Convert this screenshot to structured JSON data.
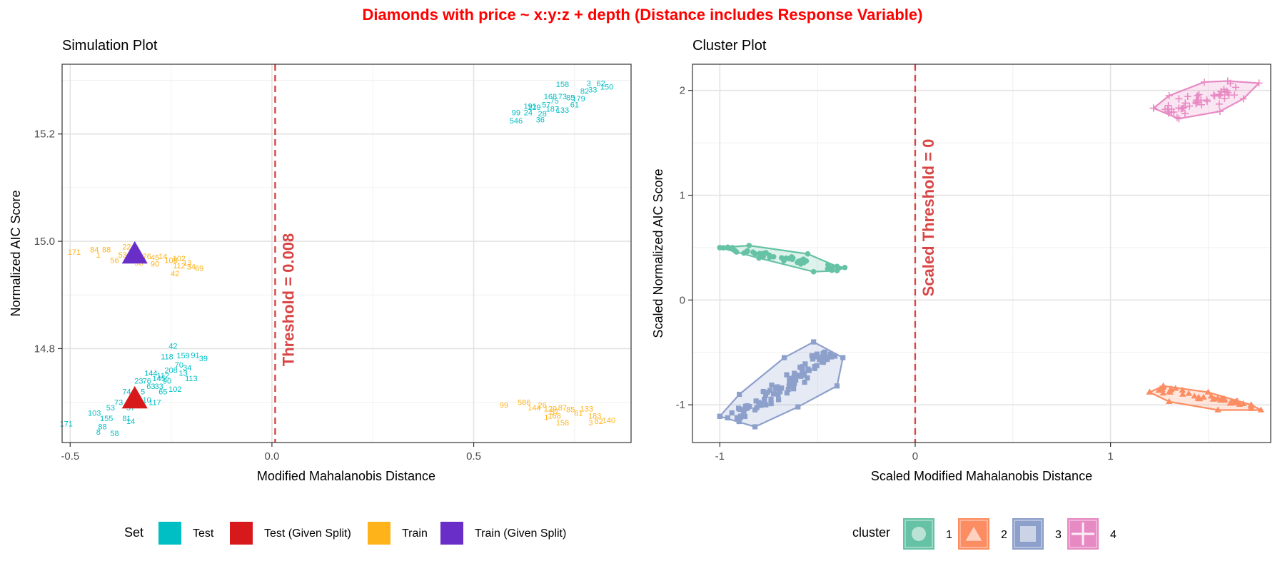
{
  "title": "Diamonds with price ~ x:y:z + depth (Distance includes Response Variable)",
  "colors": {
    "title": "#ff0000",
    "threshold": "#d94545",
    "test": "#00bfc4",
    "test_given": "#d7191c",
    "train": "#ffb31a",
    "train_given": "#6a2ec8",
    "c1": "#66c2a5",
    "c2": "#fc8d62",
    "c3": "#8da0cb",
    "c4": "#e78ac3"
  },
  "chart_data": [
    {
      "type": "scatter",
      "title": "Simulation Plot",
      "xlabel": "Modified Mahalanobis Distance",
      "ylabel": "Normalized AIC Score",
      "xlim": [
        -0.52,
        0.89
      ],
      "ylim": [
        14.625,
        15.33
      ],
      "x_ticks": [
        -0.5,
        0.0,
        0.5
      ],
      "x_tick_labels": [
        "-0.5",
        "0.0",
        "0.5"
      ],
      "y_ticks": [
        14.8,
        15.0,
        15.2
      ],
      "y_tick_labels": [
        "14.8",
        "15.0",
        "15.2"
      ],
      "grid": true,
      "threshold": {
        "x": 0.008,
        "label": "Threshold = 0.008"
      },
      "legend": {
        "position": "bottom",
        "title": "Set",
        "entries": [
          "Test",
          "Test (Given Split)",
          "Train",
          "Train (Given Split)"
        ]
      },
      "series": [
        {
          "name": "Test",
          "color_key": "test",
          "marker": "text",
          "points": [
            {
              "x": -0.51,
              "y": 14.66,
              "label": "171"
            },
            {
              "x": -0.42,
              "y": 14.655,
              "label": "88"
            },
            {
              "x": -0.44,
              "y": 14.68,
              "label": "103"
            },
            {
              "x": -0.4,
              "y": 14.69,
              "label": "53"
            },
            {
              "x": -0.38,
              "y": 14.7,
              "label": "73"
            },
            {
              "x": -0.43,
              "y": 14.645,
              "label": "8"
            },
            {
              "x": -0.39,
              "y": 14.642,
              "label": "58"
            },
            {
              "x": -0.41,
              "y": 14.67,
              "label": "155"
            },
            {
              "x": -0.36,
              "y": 14.67,
              "label": "81"
            },
            {
              "x": -0.35,
              "y": 14.69,
              "label": "57"
            },
            {
              "x": -0.34,
              "y": 14.71,
              "label": "20"
            },
            {
              "x": -0.32,
              "y": 14.72,
              "label": "5"
            },
            {
              "x": -0.3,
              "y": 14.73,
              "label": "63"
            },
            {
              "x": -0.31,
              "y": 14.74,
              "label": "76"
            },
            {
              "x": -0.28,
              "y": 14.745,
              "label": "145"
            },
            {
              "x": -0.27,
              "y": 14.75,
              "label": "112"
            },
            {
              "x": -0.26,
              "y": 14.74,
              "label": "90"
            },
            {
              "x": -0.33,
              "y": 14.74,
              "label": "23"
            },
            {
              "x": -0.3,
              "y": 14.755,
              "label": "144"
            },
            {
              "x": -0.29,
              "y": 14.7,
              "label": "117"
            },
            {
              "x": -0.31,
              "y": 14.705,
              "label": "10"
            },
            {
              "x": -0.27,
              "y": 14.72,
              "label": "65"
            },
            {
              "x": -0.25,
              "y": 14.76,
              "label": "208"
            },
            {
              "x": -0.23,
              "y": 14.77,
              "label": "70"
            },
            {
              "x": -0.21,
              "y": 14.765,
              "label": "34"
            },
            {
              "x": -0.22,
              "y": 14.755,
              "label": "13"
            },
            {
              "x": -0.2,
              "y": 14.745,
              "label": "113"
            },
            {
              "x": -0.24,
              "y": 14.725,
              "label": "102"
            },
            {
              "x": -0.26,
              "y": 14.785,
              "label": "118"
            },
            {
              "x": -0.22,
              "y": 14.787,
              "label": "159"
            },
            {
              "x": -0.19,
              "y": 14.788,
              "label": "91"
            },
            {
              "x": -0.17,
              "y": 14.782,
              "label": "39"
            },
            {
              "x": -0.245,
              "y": 14.805,
              "label": "42"
            },
            {
              "x": -0.28,
              "y": 14.73,
              "label": "33"
            },
            {
              "x": -0.36,
              "y": 14.72,
              "label": "74"
            },
            {
              "x": -0.35,
              "y": 14.665,
              "label": "14"
            },
            {
              "x": 0.605,
              "y": 15.24,
              "label": "99"
            },
            {
              "x": 0.605,
              "y": 15.225,
              "label": "546"
            },
            {
              "x": 0.665,
              "y": 15.227,
              "label": "36"
            },
            {
              "x": 0.635,
              "y": 15.24,
              "label": "24"
            },
            {
              "x": 0.65,
              "y": 15.25,
              "label": "129"
            },
            {
              "x": 0.68,
              "y": 15.255,
              "label": "57"
            },
            {
              "x": 0.7,
              "y": 15.262,
              "label": "75"
            },
            {
              "x": 0.69,
              "y": 15.27,
              "label": "168"
            },
            {
              "x": 0.72,
              "y": 15.27,
              "label": "73"
            },
            {
              "x": 0.74,
              "y": 15.268,
              "label": "85"
            },
            {
              "x": 0.76,
              "y": 15.266,
              "label": "179"
            },
            {
              "x": 0.775,
              "y": 15.28,
              "label": "82"
            },
            {
              "x": 0.795,
              "y": 15.283,
              "label": "33"
            },
            {
              "x": 0.72,
              "y": 15.245,
              "label": "133"
            },
            {
              "x": 0.695,
              "y": 15.247,
              "label": "187"
            },
            {
              "x": 0.67,
              "y": 15.238,
              "label": "28"
            },
            {
              "x": 0.72,
              "y": 15.293,
              "label": "158"
            },
            {
              "x": 0.785,
              "y": 15.295,
              "label": "3"
            },
            {
              "x": 0.815,
              "y": 15.295,
              "label": "62"
            },
            {
              "x": 0.83,
              "y": 15.288,
              "label": "150"
            },
            {
              "x": 0.75,
              "y": 15.255,
              "label": "61"
            },
            {
              "x": 0.64,
              "y": 15.252,
              "label": "191"
            }
          ]
        },
        {
          "name": "Train",
          "color_key": "train",
          "marker": "text",
          "points": [
            {
              "x": -0.49,
              "y": 14.98,
              "label": "171"
            },
            {
              "x": -0.44,
              "y": 14.985,
              "label": "84"
            },
            {
              "x": -0.41,
              "y": 14.985,
              "label": "88"
            },
            {
              "x": -0.43,
              "y": 14.975,
              "label": "1"
            },
            {
              "x": -0.39,
              "y": 14.965,
              "label": "56"
            },
            {
              "x": -0.37,
              "y": 14.975,
              "label": "53"
            },
            {
              "x": -0.36,
              "y": 14.99,
              "label": "22"
            },
            {
              "x": -0.31,
              "y": 14.972,
              "label": "76"
            },
            {
              "x": -0.29,
              "y": 14.97,
              "label": "45"
            },
            {
              "x": -0.27,
              "y": 14.972,
              "label": "14"
            },
            {
              "x": -0.25,
              "y": 14.965,
              "label": "108"
            },
            {
              "x": -0.23,
              "y": 14.968,
              "label": "102"
            },
            {
              "x": -0.21,
              "y": 14.96,
              "label": "13"
            },
            {
              "x": -0.23,
              "y": 14.955,
              "label": "112"
            },
            {
              "x": -0.2,
              "y": 14.953,
              "label": "34"
            },
            {
              "x": -0.18,
              "y": 14.95,
              "label": "69"
            },
            {
              "x": -0.24,
              "y": 14.94,
              "label": "42"
            },
            {
              "x": -0.33,
              "y": 14.96,
              "label": "93"
            },
            {
              "x": -0.29,
              "y": 14.958,
              "label": "90"
            },
            {
              "x": 0.575,
              "y": 14.695,
              "label": "99"
            },
            {
              "x": 0.625,
              "y": 14.7,
              "label": "586"
            },
            {
              "x": 0.65,
              "y": 14.69,
              "label": "144"
            },
            {
              "x": 0.67,
              "y": 14.695,
              "label": "26"
            },
            {
              "x": 0.69,
              "y": 14.688,
              "label": "129"
            },
            {
              "x": 0.7,
              "y": 14.682,
              "label": "57"
            },
            {
              "x": 0.72,
              "y": 14.69,
              "label": "87"
            },
            {
              "x": 0.74,
              "y": 14.687,
              "label": "85"
            },
            {
              "x": 0.76,
              "y": 14.68,
              "label": "61"
            },
            {
              "x": 0.78,
              "y": 14.688,
              "label": "133"
            },
            {
              "x": 0.8,
              "y": 14.675,
              "label": "183"
            },
            {
              "x": 0.81,
              "y": 14.665,
              "label": "62"
            },
            {
              "x": 0.835,
              "y": 14.667,
              "label": "140"
            },
            {
              "x": 0.79,
              "y": 14.662,
              "label": "3"
            },
            {
              "x": 0.72,
              "y": 14.662,
              "label": "158"
            },
            {
              "x": 0.68,
              "y": 14.672,
              "label": "1"
            },
            {
              "x": 0.7,
              "y": 14.675,
              "label": "168"
            }
          ]
        },
        {
          "name": "Test (Given Split)",
          "color_key": "test_given",
          "marker": "triangle",
          "points": [
            {
              "x": -0.34,
              "y": 14.705
            }
          ]
        },
        {
          "name": "Train (Given Split)",
          "color_key": "train_given",
          "marker": "triangle",
          "points": [
            {
              "x": -0.34,
              "y": 14.975
            }
          ]
        }
      ]
    },
    {
      "type": "scatter",
      "title": "Cluster Plot",
      "xlabel": "Scaled Modified Mahalanobis Distance",
      "ylabel": "Scaled Normalized AIC Score",
      "xlim": [
        -1.14,
        1.82
      ],
      "ylim": [
        -1.36,
        2.25
      ],
      "x_ticks": [
        -1,
        0,
        1
      ],
      "x_tick_labels": [
        "-1",
        "0",
        "1"
      ],
      "y_ticks": [
        -1,
        0,
        1,
        2
      ],
      "y_tick_labels": [
        "-1",
        "0",
        "1",
        "2"
      ],
      "grid": true,
      "threshold": {
        "x": 0,
        "label": "Scaled Threshold = 0"
      },
      "legend": {
        "position": "bottom",
        "title": "cluster",
        "entries": [
          "1",
          "2",
          "3",
          "4"
        ]
      },
      "clusters": [
        {
          "name": "1",
          "color_key": "c1",
          "marker": "circle",
          "hull": [
            [
              -1.0,
              0.5
            ],
            [
              -0.85,
              0.52
            ],
            [
              -0.55,
              0.44
            ],
            [
              -0.4,
              0.32
            ],
            [
              -0.36,
              0.31
            ],
            [
              -0.4,
              0.28
            ],
            [
              -0.52,
              0.27
            ],
            [
              -0.8,
              0.4
            ],
            [
              -1.0,
              0.5
            ]
          ],
          "center": [
            -0.68,
            0.4
          ],
          "spread": [
            0.3,
            0.04
          ],
          "n": 45,
          "seed": 11
        },
        {
          "name": "2",
          "color_key": "c2",
          "marker": "triangle",
          "hull": [
            [
              -1.0,
              -1.0
            ],
            [
              1.2,
              -0.88
            ],
            [
              1.27,
              -0.82
            ],
            [
              1.5,
              -0.88
            ],
            [
              1.72,
              -1.0
            ],
            [
              1.77,
              -1.05
            ],
            [
              1.55,
              -1.05
            ],
            [
              1.3,
              -0.97
            ],
            [
              1.2,
              -0.88
            ]
          ],
          "center": [
            1.5,
            -0.93
          ],
          "spread": [
            0.24,
            0.05
          ],
          "n": 40,
          "seed": 23
        },
        {
          "name": "3",
          "color_key": "c3",
          "marker": "square",
          "hull": [
            [
              -1.0,
              -1.11
            ],
            [
              -0.82,
              -1.21
            ],
            [
              -0.6,
              -1.02
            ],
            [
              -0.4,
              -0.82
            ],
            [
              -0.37,
              -0.55
            ],
            [
              -0.52,
              -0.4
            ],
            [
              -0.67,
              -0.55
            ],
            [
              -0.9,
              -0.9
            ],
            [
              -1.0,
              -1.11
            ]
          ],
          "center": [
            -0.68,
            -0.82
          ],
          "spread": [
            0.23,
            0.22
          ],
          "n": 95,
          "seed": 37
        },
        {
          "name": "4",
          "color_key": "c4",
          "marker": "plus",
          "hull": [
            [
              1.22,
              1.83
            ],
            [
              1.35,
              1.73
            ],
            [
              1.56,
              1.8
            ],
            [
              1.68,
              1.92
            ],
            [
              1.76,
              2.07
            ],
            [
              1.6,
              2.09
            ],
            [
              1.48,
              2.08
            ],
            [
              1.3,
              1.95
            ],
            [
              1.22,
              1.83
            ]
          ],
          "center": [
            1.48,
            1.91
          ],
          "spread": [
            0.2,
            0.12
          ],
          "n": 45,
          "seed": 53
        }
      ]
    }
  ]
}
